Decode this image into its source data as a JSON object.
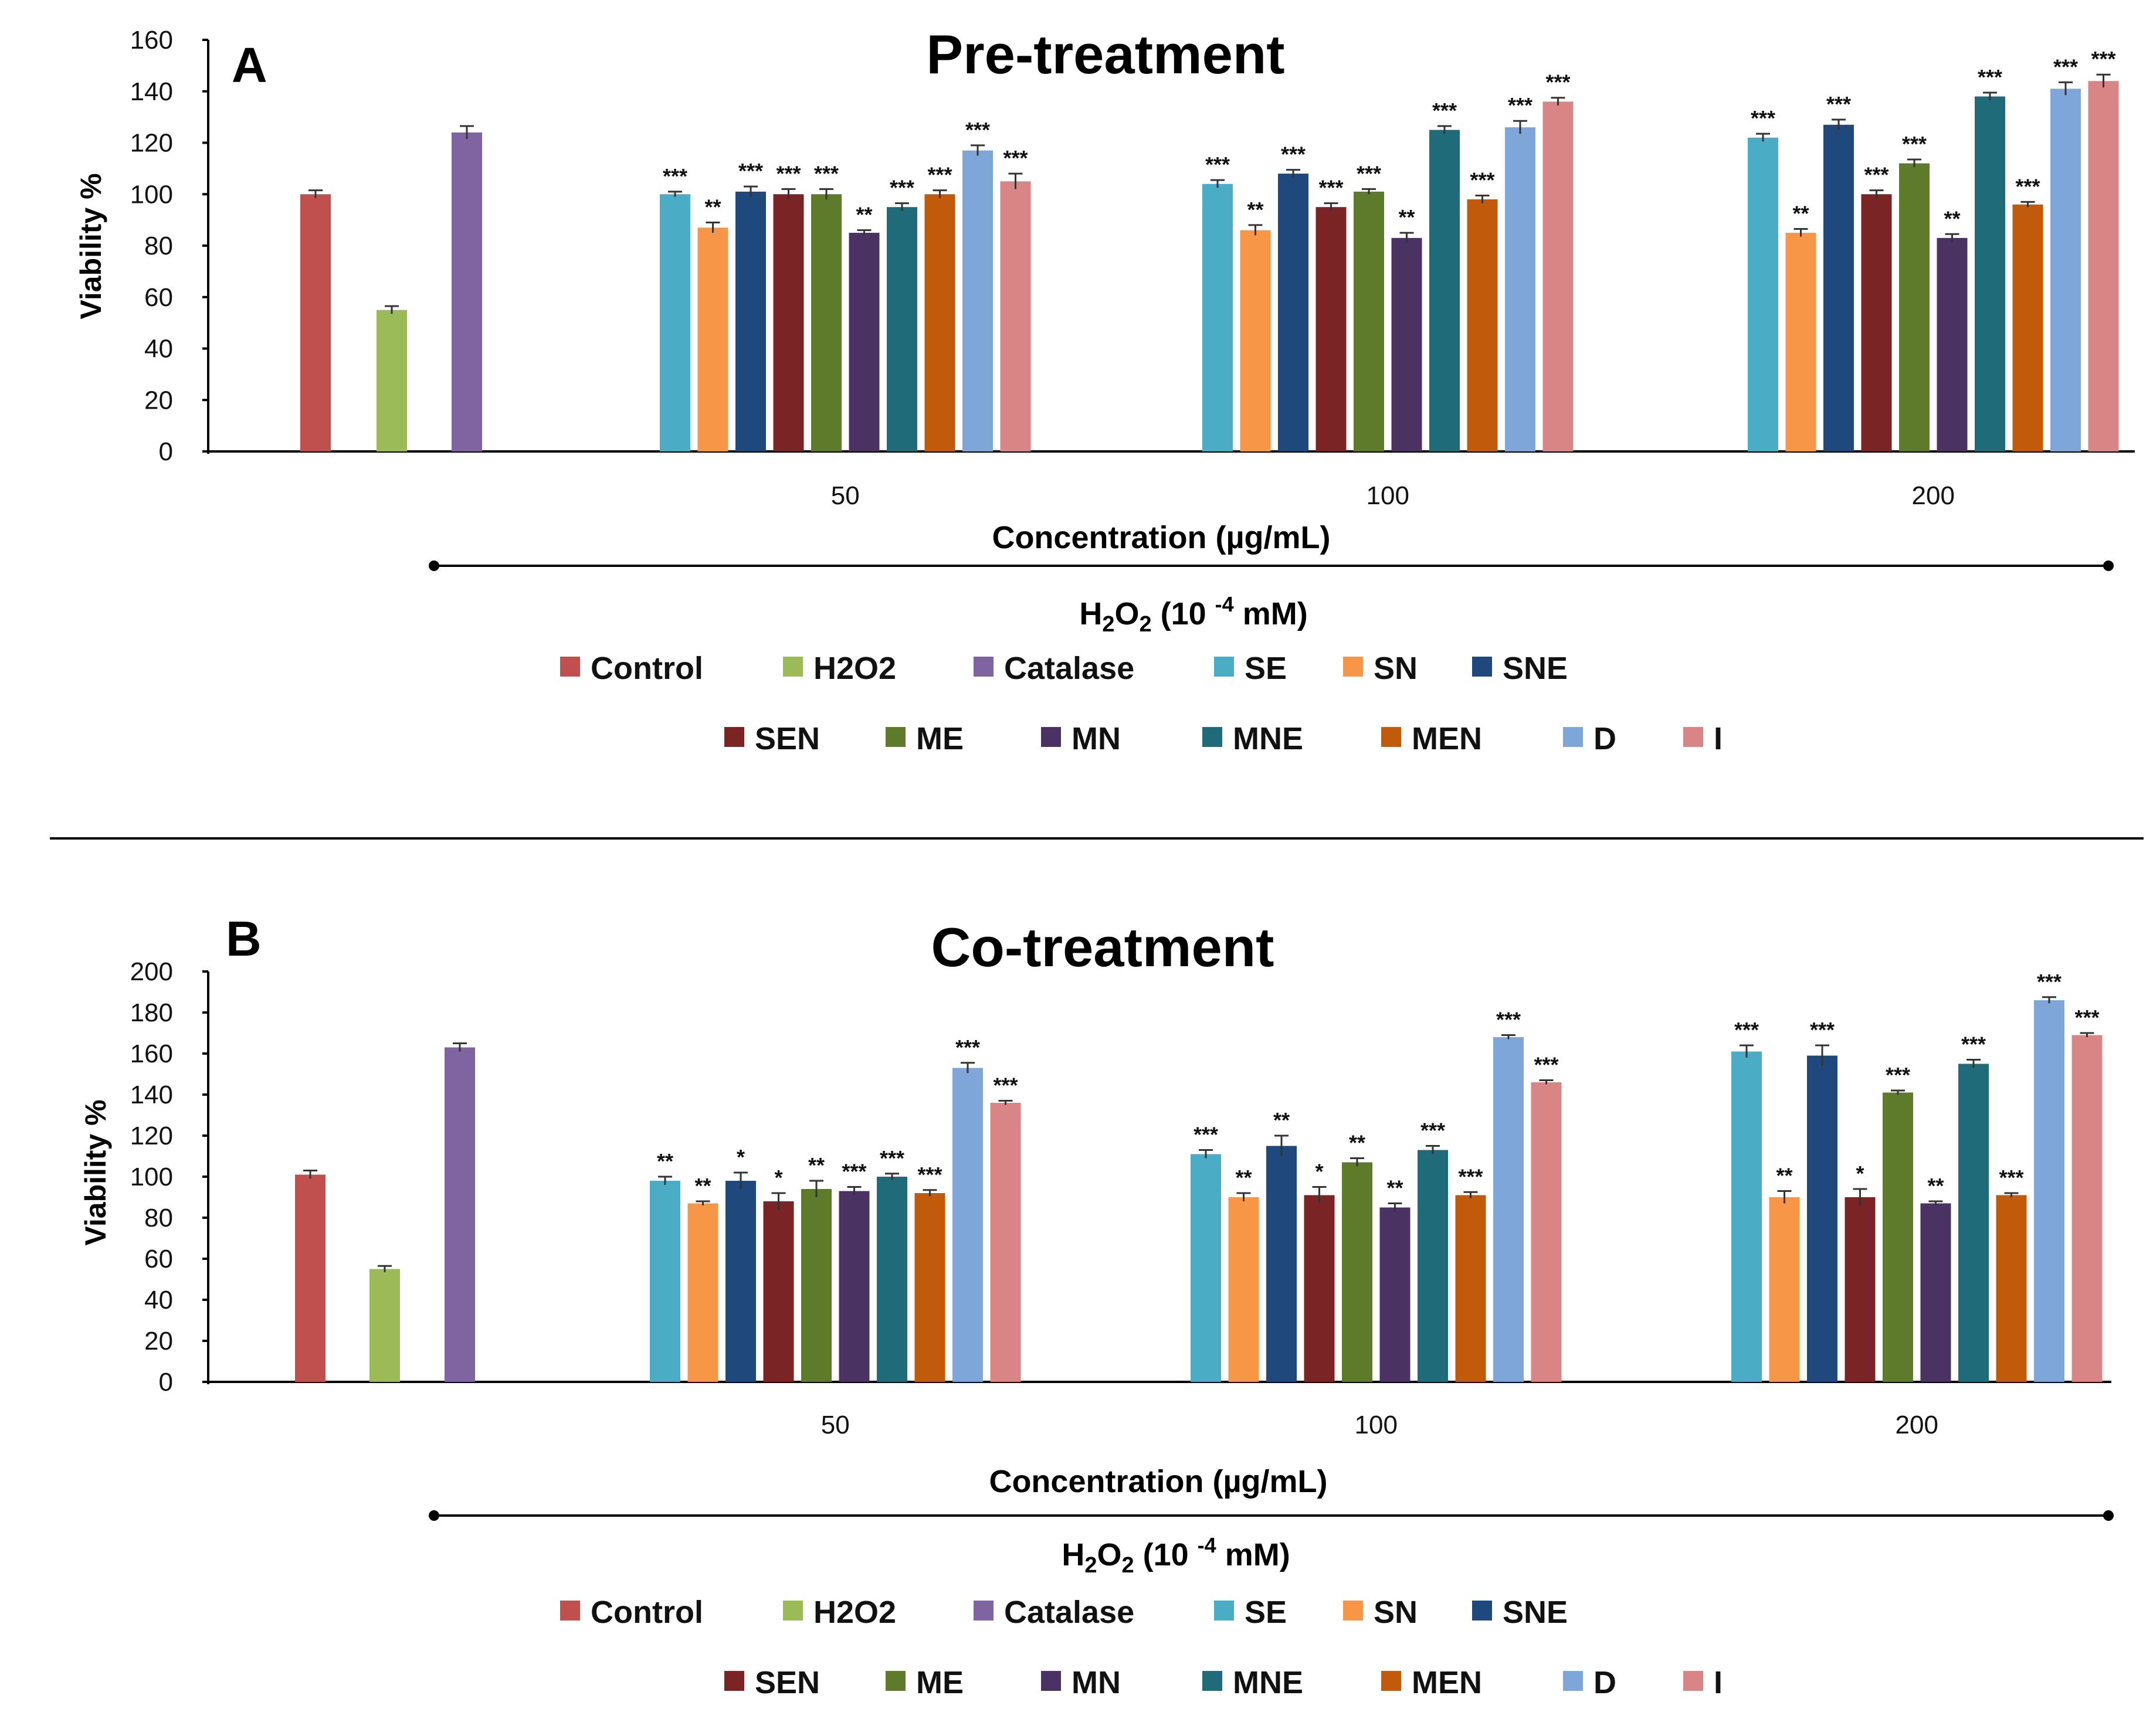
{
  "colors": {
    "Control": "#c0504d",
    "H2O2": "#9bbb59",
    "Catalase": "#8064a2",
    "SE": "#4bacc6",
    "SN": "#f79646",
    "SNE": "#1f497d",
    "SEN": "#7b2426",
    "ME": "#5e7a2b",
    "MN": "#4a3362",
    "MNE": "#1f6b7a",
    "MEN": "#c25a0c",
    "D": "#7ea6d8",
    "I": "#d98585"
  },
  "legend": {
    "row1": [
      "Control",
      "H2O2",
      "Catalase",
      "SE",
      "SN",
      "SNE"
    ],
    "row2": [
      "SEN",
      "ME",
      "MN",
      "MNE",
      "MEN",
      "D",
      "I"
    ]
  },
  "chart_data": [
    {
      "type": "bar",
      "panel": "A",
      "title": "Pre-treatment",
      "xlabel": "Concentration (µg/mL)",
      "ylabel": "Viability %",
      "ylim": [
        0,
        160
      ],
      "yticks": [
        0,
        20,
        40,
        60,
        80,
        100,
        120,
        140,
        160
      ],
      "bracket_label": {
        "main": "H",
        "sub1": "2",
        "mid": "O",
        "sub2": "2",
        "rest": " (10 ",
        "sup": "-4",
        "end": " mM)"
      },
      "controls": [
        {
          "name": "Control",
          "value": 100,
          "err": 1.5
        },
        {
          "name": "H2O2",
          "value": 55,
          "err": 1.5
        },
        {
          "name": "Catalase",
          "value": 124,
          "err": 2.5
        }
      ],
      "series_names": [
        "SE",
        "SN",
        "SNE",
        "SEN",
        "ME",
        "MN",
        "MNE",
        "MEN",
        "D",
        "I"
      ],
      "categories": [
        "50",
        "100",
        "200"
      ],
      "groups": [
        {
          "category": "50",
          "values": [
            100,
            87,
            101,
            100,
            100,
            85,
            95,
            100,
            117,
            105
          ],
          "errors": [
            1,
            2,
            2,
            2,
            2,
            1,
            1.5,
            1.5,
            2,
            3
          ],
          "sig": [
            "***",
            "**",
            "***",
            "***",
            "***",
            "**",
            "***",
            "***",
            "***",
            "***"
          ]
        },
        {
          "category": "100",
          "values": [
            104,
            86,
            108,
            95,
            101,
            83,
            125,
            98,
            126,
            136
          ],
          "errors": [
            1.5,
            2,
            1.5,
            1.5,
            1,
            2,
            1.5,
            1.5,
            2.5,
            1.5
          ],
          "sig": [
            "***",
            "**",
            "***",
            "***",
            "***",
            "**",
            "***",
            "***",
            "***",
            "***"
          ]
        },
        {
          "category": "200",
          "values": [
            122,
            85,
            127,
            100,
            112,
            83,
            138,
            96,
            141,
            144
          ],
          "errors": [
            1.5,
            1.5,
            2,
            1.5,
            1.5,
            1.5,
            1.5,
            1,
            2.5,
            2.5
          ],
          "sig": [
            "***",
            "**",
            "***",
            "***",
            "***",
            "**",
            "***",
            "***",
            "***",
            "***"
          ]
        }
      ]
    },
    {
      "type": "bar",
      "panel": "B",
      "title": "Co-treatment",
      "xlabel": "Concentration (µg/mL)",
      "ylabel": "Viability %",
      "ylim": [
        0,
        200
      ],
      "yticks": [
        0,
        20,
        40,
        60,
        80,
        100,
        120,
        140,
        160,
        180,
        200
      ],
      "bracket_label": {
        "main": "H",
        "sub1": "2",
        "mid": "O",
        "sub2": "2",
        "rest": " (10 ",
        "sup": "-4",
        "end": " mM)"
      },
      "controls": [
        {
          "name": "Control",
          "value": 101,
          "err": 2
        },
        {
          "name": "H2O2",
          "value": 55,
          "err": 1.5
        },
        {
          "name": "Catalase",
          "value": 163,
          "err": 2
        }
      ],
      "series_names": [
        "SE",
        "SN",
        "SNE",
        "SEN",
        "ME",
        "MN",
        "MNE",
        "MEN",
        "D",
        "I"
      ],
      "categories": [
        "50",
        "100",
        "200"
      ],
      "groups": [
        {
          "category": "50",
          "values": [
            98,
            87,
            98,
            88,
            94,
            93,
            100,
            92,
            153,
            136
          ],
          "errors": [
            2,
            1,
            4,
            4,
            4,
            2,
            1.5,
            1.5,
            2.5,
            1
          ],
          "sig": [
            "**",
            "**",
            "*",
            "*",
            "**",
            "***",
            "***",
            "***",
            "***",
            "***"
          ]
        },
        {
          "category": "100",
          "values": [
            111,
            90,
            115,
            91,
            107,
            85,
            113,
            91,
            168,
            146
          ],
          "errors": [
            2,
            2,
            5,
            4,
            2,
            2,
            2,
            1.5,
            1,
            1
          ],
          "sig": [
            "***",
            "**",
            "**",
            "*",
            "**",
            "**",
            "***",
            "***",
            "***",
            "***"
          ]
        },
        {
          "category": "200",
          "values": [
            161,
            90,
            159,
            90,
            141,
            87,
            155,
            91,
            186,
            169
          ],
          "errors": [
            3,
            3,
            5,
            4,
            1,
            1,
            2,
            1,
            1.5,
            1
          ],
          "sig": [
            "***",
            "**",
            "***",
            "*",
            "***",
            "**",
            "***",
            "***",
            "***",
            "***"
          ]
        }
      ]
    }
  ]
}
